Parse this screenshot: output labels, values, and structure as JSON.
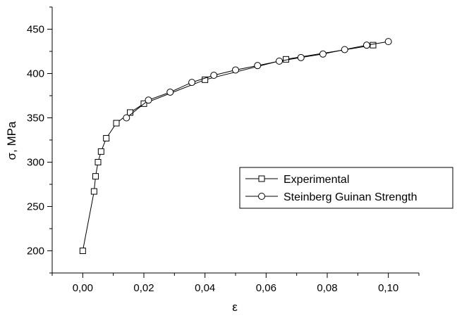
{
  "chart_data": {
    "type": "line",
    "title": "",
    "xlabel": "ε",
    "ylabel": "σ, MPa",
    "xlim": [
      -0.01,
      0.11
    ],
    "ylim": [
      175,
      475
    ],
    "xticks": [
      0.0,
      0.02,
      0.04,
      0.06,
      0.08,
      0.1
    ],
    "xtick_labels": [
      "0,00",
      "0,02",
      "0,04",
      "0,06",
      "0,08",
      "0,10"
    ],
    "yticks": [
      200,
      250,
      300,
      350,
      400,
      450
    ],
    "ytick_labels": [
      "200",
      "250",
      "300",
      "350",
      "400",
      "450"
    ],
    "grid": false,
    "legend_position": "right",
    "series": [
      {
        "name": "Experimental",
        "marker": "square",
        "x": [
          0.0,
          0.0037,
          0.0042,
          0.005,
          0.006,
          0.0077,
          0.011,
          0.0155,
          0.02,
          0.04,
          0.0665,
          0.095
        ],
        "y": [
          200,
          267,
          284,
          300,
          312,
          327,
          344,
          356,
          366,
          393,
          416,
          432
        ]
      },
      {
        "name": "Steinberg Guinan Strength",
        "marker": "circle",
        "x": [
          0.0143,
          0.0215,
          0.0286,
          0.0357,
          0.0429,
          0.05,
          0.0572,
          0.0643,
          0.0714,
          0.0786,
          0.0857,
          0.0929,
          0.1
        ],
        "y": [
          350,
          370,
          379,
          390,
          398,
          404,
          409,
          414,
          418,
          422,
          427,
          432,
          436
        ]
      }
    ]
  }
}
